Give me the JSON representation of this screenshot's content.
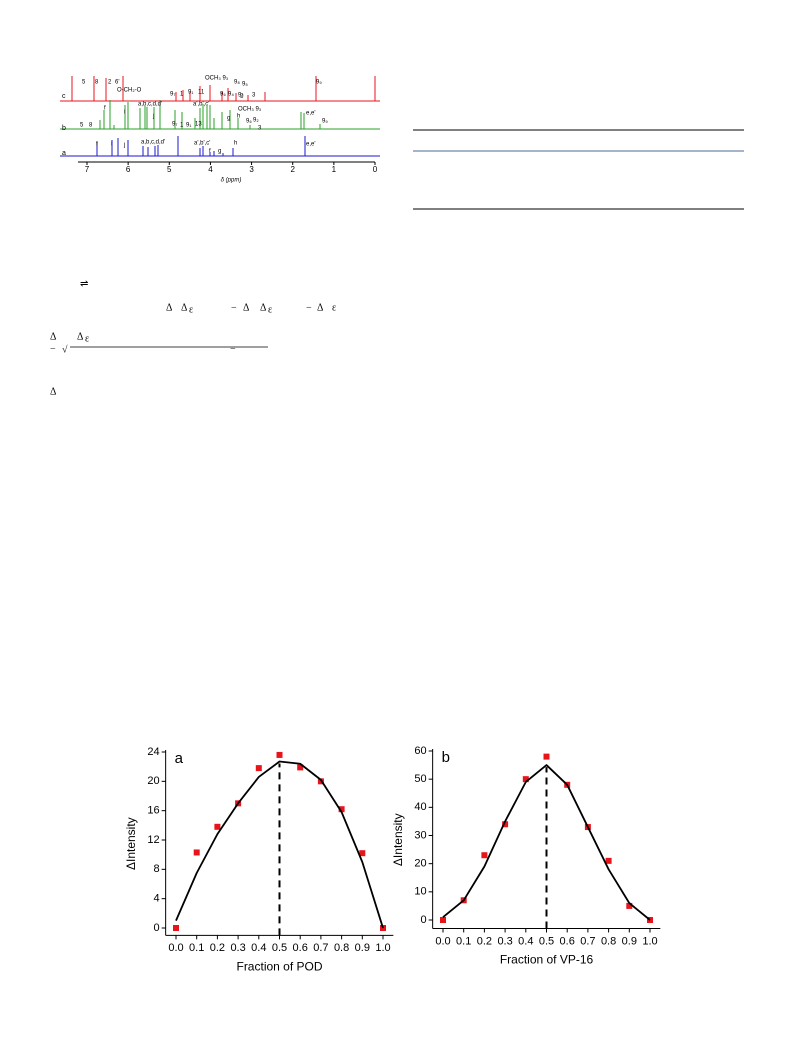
{
  "nmr_figure": {
    "xlabel": "δ (ppm)",
    "xlim": [
      7.5,
      0
    ],
    "xticks": [
      7,
      6,
      5,
      4,
      3,
      2,
      1,
      0
    ],
    "trace_labels": [
      "a",
      "b",
      "c"
    ],
    "peak_labels": [
      "5",
      "8",
      "2",
      "6'",
      "O-CH₂-O",
      "OCH₃ 9₃",
      "9₈",
      "9₅",
      "9₇",
      "1",
      "9₁",
      "11",
      "9₆",
      "9₄",
      "9₂",
      "2",
      "3",
      "9₉",
      "a,b,c,d,d'",
      "a',b',c'",
      "f",
      "i",
      "j",
      "h",
      "g",
      "e,e'",
      "9₇",
      "1",
      "9₁",
      "13",
      "9₆",
      "9₂",
      "3",
      "OCH₃ 9₃",
      "5",
      "8",
      "9₉",
      "f",
      "i",
      "j",
      "a,b,c,d,d'",
      "a',b',c'",
      "g",
      "f",
      "h",
      "e,e'"
    ]
  },
  "equation_fragments": [
    "⇌",
    "Δ",
    "Δ",
    "ε",
    "−",
    "Δ",
    "Δ",
    "ε",
    "−",
    "Δ",
    "ε",
    "Δ",
    "Δ",
    "ε",
    "−",
    "√",
    "−",
    "Δ"
  ],
  "chart_data": [
    {
      "type": "scatter",
      "panel_label": "a",
      "x_label": "Fraction of POD",
      "y_label": "ΔIntensity",
      "x": [
        0.0,
        0.1,
        0.2,
        0.3,
        0.4,
        0.5,
        0.6,
        0.7,
        0.8,
        0.9,
        1.0
      ],
      "series": [
        {
          "color": "#e8141c",
          "values": [
            0,
            10.3,
            13.8,
            17,
            21.8,
            23.6,
            21.9,
            20,
            16.2,
            10.2,
            0
          ]
        },
        {
          "color": "#000000",
          "style": "line",
          "values": [
            1,
            7.5,
            12.8,
            17,
            20.6,
            22.7,
            22.4,
            20.2,
            15.8,
            9,
            0
          ]
        }
      ],
      "reference_line_x": 0.5,
      "xlim": [
        -0.05,
        1.05
      ],
      "xticks": [
        {
          "value": 0,
          "label": "0.0"
        },
        0.1,
        0.2,
        0.3,
        0.4,
        0.5,
        0.6,
        0.7,
        0.8,
        0.9,
        {
          "value": 1,
          "label": "1.0"
        }
      ],
      "ylim": [
        -1,
        24
      ],
      "yticks": [
        0,
        4,
        8,
        12,
        16,
        20,
        24
      ]
    },
    {
      "type": "scatter",
      "panel_label": "b",
      "x_label": "Fraction of VP-16",
      "y_label": "ΔIntensity",
      "x": [
        0.0,
        0.1,
        0.2,
        0.3,
        0.4,
        0.5,
        0.6,
        0.7,
        0.8,
        0.9,
        1.0
      ],
      "series": [
        {
          "color": "#e8141c",
          "values": [
            0,
            7,
            23,
            34,
            50,
            58,
            48,
            33,
            21,
            5,
            0
          ]
        },
        {
          "color": "#000000",
          "style": "line",
          "values": [
            1,
            7,
            19,
            35,
            49,
            55,
            48,
            33,
            18,
            6,
            0
          ]
        }
      ],
      "reference_line_x": 0.5,
      "xlim": [
        -0.05,
        1.05
      ],
      "xticks": [
        {
          "value": 0,
          "label": "0.0"
        },
        0.1,
        0.2,
        0.3,
        0.4,
        0.5,
        0.6,
        0.7,
        0.8,
        0.9,
        {
          "value": 1,
          "label": "1.0"
        }
      ],
      "ylim": [
        -3,
        60
      ],
      "yticks": [
        0,
        10,
        20,
        30,
        40,
        50,
        60
      ]
    }
  ]
}
